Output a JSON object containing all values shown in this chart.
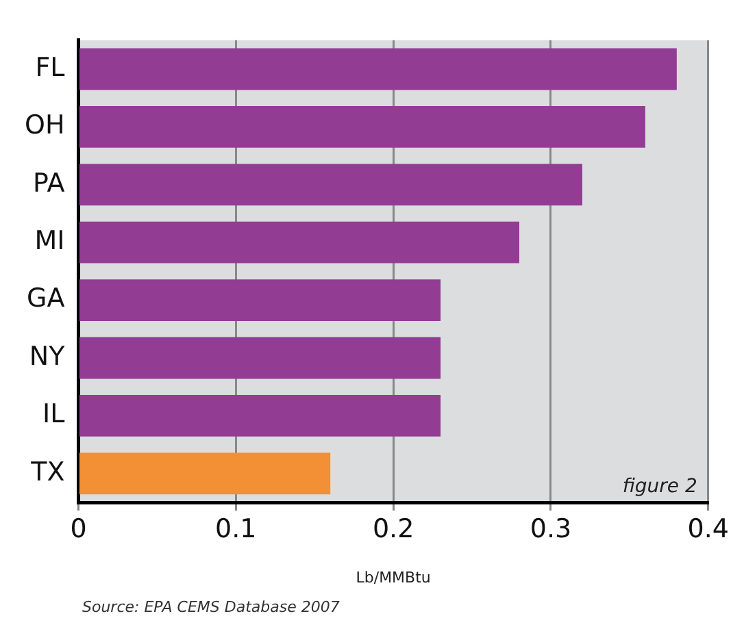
{
  "chart_data": {
    "type": "bar",
    "orientation": "horizontal",
    "xlabel": "Lb/MMBtu",
    "categories": [
      "FL",
      "OH",
      "PA",
      "MI",
      "GA",
      "NY",
      "IL",
      "TX"
    ],
    "values": [
      0.38,
      0.36,
      0.32,
      0.28,
      0.23,
      0.23,
      0.23,
      0.16
    ],
    "colors": [
      "#923c94",
      "#923c94",
      "#923c94",
      "#923c94",
      "#923c94",
      "#923c94",
      "#923c94",
      "#f39035"
    ],
    "xlim": [
      0,
      0.4
    ],
    "xticks": [
      0,
      0.1,
      0.2,
      0.3,
      0.4
    ],
    "grid": "x",
    "annotations": [
      "figure 2",
      "Source:  EPA CEMS Database 2007"
    ]
  }
}
